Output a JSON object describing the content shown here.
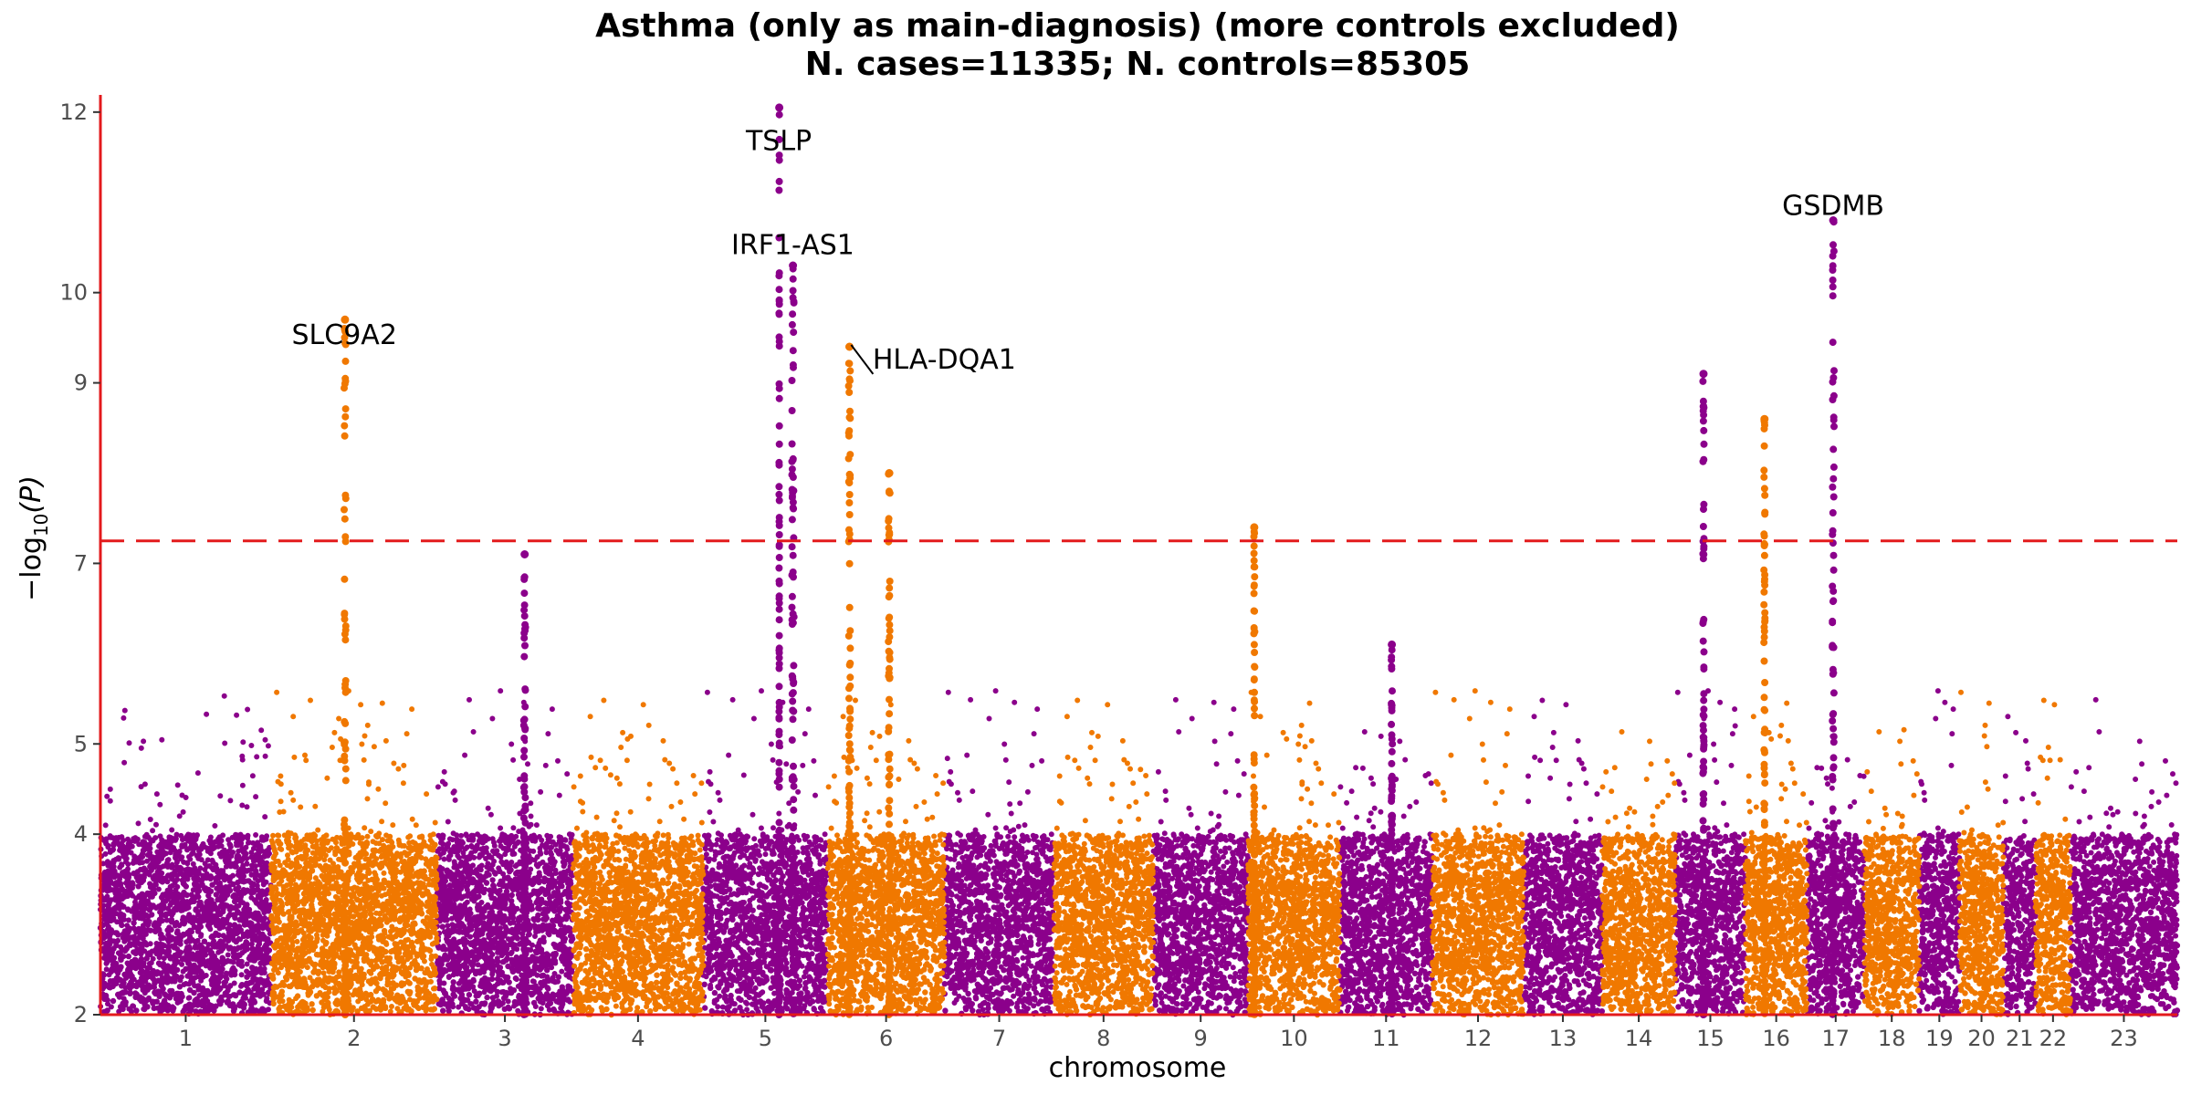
{
  "chart_data": {
    "type": "scatter",
    "title_line1": "Asthma (only as main-diagnosis) (more controls excluded)",
    "title_line2": "N. cases=11335; N. controls=85305",
    "xlabel": "chromosome",
    "ylabel": "−log",
    "ylabel_sub": "10",
    "ylabel_var": "(P)",
    "ylim": [
      2,
      12.15
    ],
    "y_ticks": [
      2,
      4,
      5,
      7,
      9,
      10,
      12
    ],
    "significance_line": 7.25,
    "colors": {
      "odd": "#8b008b",
      "even": "#f07800",
      "threshold": "#e31a1c",
      "axis": "#e31a1c"
    },
    "chromosomes": [
      {
        "label": "1",
        "start": 0,
        "end": 248.96
      },
      {
        "label": "2",
        "start": 248.96,
        "end": 491.15
      },
      {
        "label": "3",
        "start": 491.15,
        "end": 689.45
      },
      {
        "label": "4",
        "start": 689.45,
        "end": 879.66
      },
      {
        "label": "5",
        "start": 879.66,
        "end": 1061.2
      },
      {
        "label": "6",
        "start": 1061.2,
        "end": 1232.0
      },
      {
        "label": "7",
        "start": 1232.0,
        "end": 1391.4
      },
      {
        "label": "8",
        "start": 1391.4,
        "end": 1536.5
      },
      {
        "label": "9",
        "start": 1536.5,
        "end": 1674.9
      },
      {
        "label": "10",
        "start": 1674.9,
        "end": 1808.7
      },
      {
        "label": "11",
        "start": 1808.7,
        "end": 1943.8
      },
      {
        "label": "12",
        "start": 1943.8,
        "end": 2077.1
      },
      {
        "label": "13",
        "start": 2077.1,
        "end": 2191.5
      },
      {
        "label": "14",
        "start": 2191.5,
        "end": 2298.5
      },
      {
        "label": "15",
        "start": 2298.5,
        "end": 2400.5
      },
      {
        "label": "16",
        "start": 2400.5,
        "end": 2490.8
      },
      {
        "label": "17",
        "start": 2490.8,
        "end": 2574.1
      },
      {
        "label": "18",
        "start": 2574.1,
        "end": 2654.4
      },
      {
        "label": "19",
        "start": 2654.4,
        "end": 2713.0
      },
      {
        "label": "20",
        "start": 2713.0,
        "end": 2777.5
      },
      {
        "label": "21",
        "start": 2777.5,
        "end": 2824.2
      },
      {
        "label": "22",
        "start": 2824.2,
        "end": 2875.0
      },
      {
        "label": "23",
        "start": 2875.0,
        "end": 3031.0
      }
    ],
    "peaks": [
      {
        "chrom": "2",
        "pos": 108,
        "max": 9.7,
        "width": 2.5
      },
      {
        "chrom": "3",
        "pos": 128,
        "max": 7.1,
        "width": 2.5
      },
      {
        "chrom": "5",
        "pos": 131,
        "max": 10.3,
        "width": 3
      },
      {
        "chrom": "5",
        "pos": 111,
        "max": 12.05,
        "width": 0.5
      },
      {
        "chrom": "6",
        "pos": 32,
        "max": 9.4,
        "width": 2.5
      },
      {
        "chrom": "6",
        "pos": 90,
        "max": 8.0,
        "width": 2.5
      },
      {
        "chrom": "10",
        "pos": 9,
        "max": 7.4,
        "width": 1.5
      },
      {
        "chrom": "11",
        "pos": 76,
        "max": 6.1,
        "width": 1.5
      },
      {
        "chrom": "15",
        "pos": 41,
        "max": 9.1,
        "width": 1.5
      },
      {
        "chrom": "16",
        "pos": 28,
        "max": 8.6,
        "width": 1.5
      },
      {
        "chrom": "17",
        "pos": 38,
        "max": 10.8,
        "width": 2.5
      }
    ],
    "annotations": [
      {
        "text": "TSLP",
        "x": 990,
        "y": 12.05,
        "label_y": 11.7
      },
      {
        "text": "IRF1-AS1",
        "x": 1010.5,
        "y": 10.3,
        "label_y": 10.55
      },
      {
        "text": "SLC9A2",
        "x": 356,
        "y": 9.7,
        "label_y": 9.55
      },
      {
        "text": "HLA-DQA1",
        "x": 1093,
        "y": 9.4,
        "label_y": 9.28
      },
      {
        "text": "GSDMB",
        "x": 2528.8,
        "y": 10.8,
        "label_y": 10.98
      }
    ]
  }
}
